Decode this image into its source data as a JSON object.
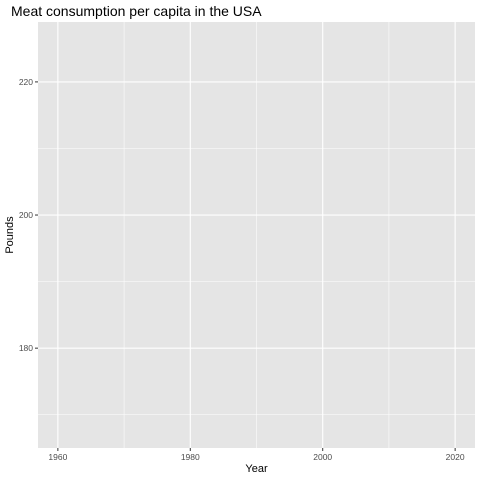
{
  "chart_data": {
    "type": "line",
    "title": "Meat consumption per capita in the USA",
    "xlabel": "Year",
    "ylabel": "Pounds",
    "xlim": [
      1957,
      2023
    ],
    "ylim": [
      165,
      229
    ],
    "x_major_ticks": [
      1960,
      1980,
      2000,
      2020
    ],
    "x_minor_ticks": [
      1970,
      1990,
      2010
    ],
    "y_major_ticks": [
      180,
      200,
      220
    ],
    "y_minor_ticks": [
      170,
      190,
      210
    ],
    "x_tick_labels": [
      "1960",
      "1980",
      "2000",
      "2020"
    ],
    "y_tick_labels": [
      "180",
      "200",
      "220"
    ],
    "grid": true,
    "panel_color": "#e5e5e5",
    "grid_color": "#ffffff",
    "series": []
  }
}
